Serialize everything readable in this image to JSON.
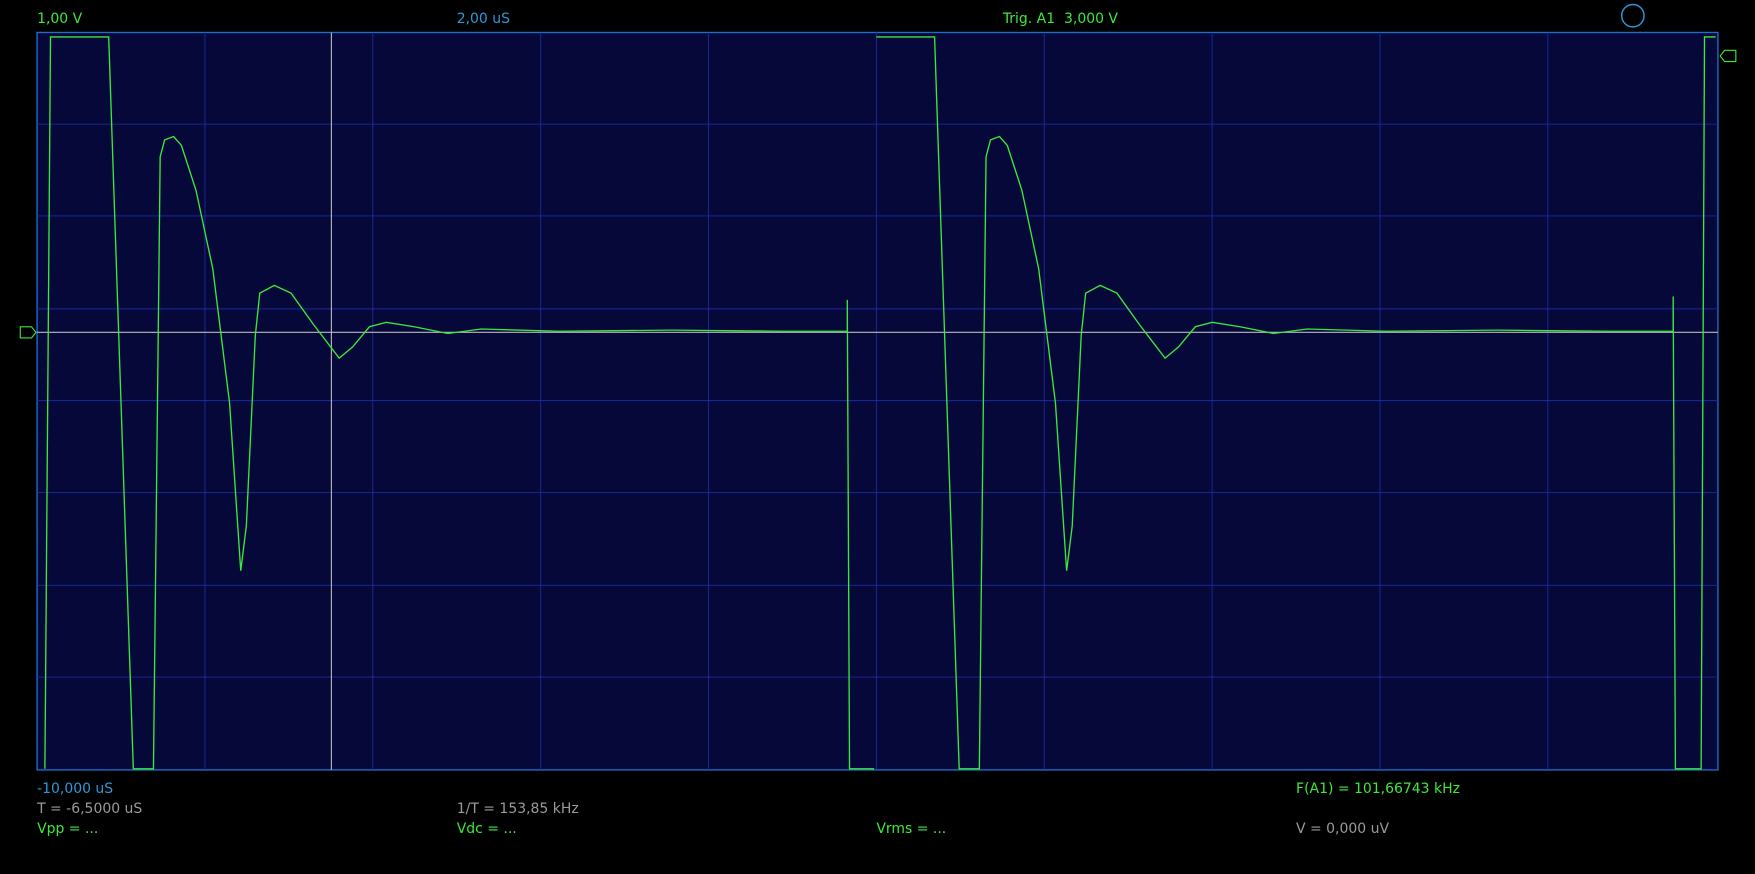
{
  "header": {
    "volts_per_div": "1,00 V",
    "time_per_div": "2,00 uS",
    "trigger": "Trig. A1  3,000 V"
  },
  "footer": {
    "time_offset": "-10,000 uS",
    "frequency": "F(A1) = 101,66743 kHz",
    "cursor_time": "T = -6,5000 uS",
    "cursor_inverse": "1/T = 153,85 kHz",
    "vpp": "Vpp = ...",
    "vdc": "Vdc = ...",
    "vrms": "Vrms = ...",
    "v": "V = 0,000 uV"
  }
}
